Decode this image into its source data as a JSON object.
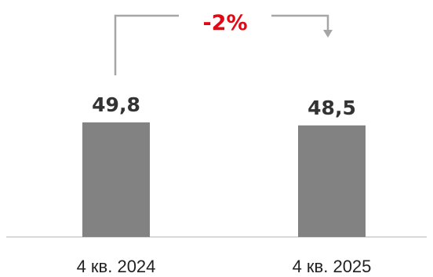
{
  "chart_data": {
    "type": "bar",
    "categories": [
      "4 кв. 2024",
      "4 кв. 2025"
    ],
    "values": [
      49.8,
      48.5
    ],
    "value_labels": [
      "49,8",
      "48,5"
    ],
    "change_label": "-2%",
    "colors": {
      "bar": "#828282",
      "change": "#e30613",
      "connector": "#a6a6a6",
      "axis": "#d9d9d9"
    }
  }
}
